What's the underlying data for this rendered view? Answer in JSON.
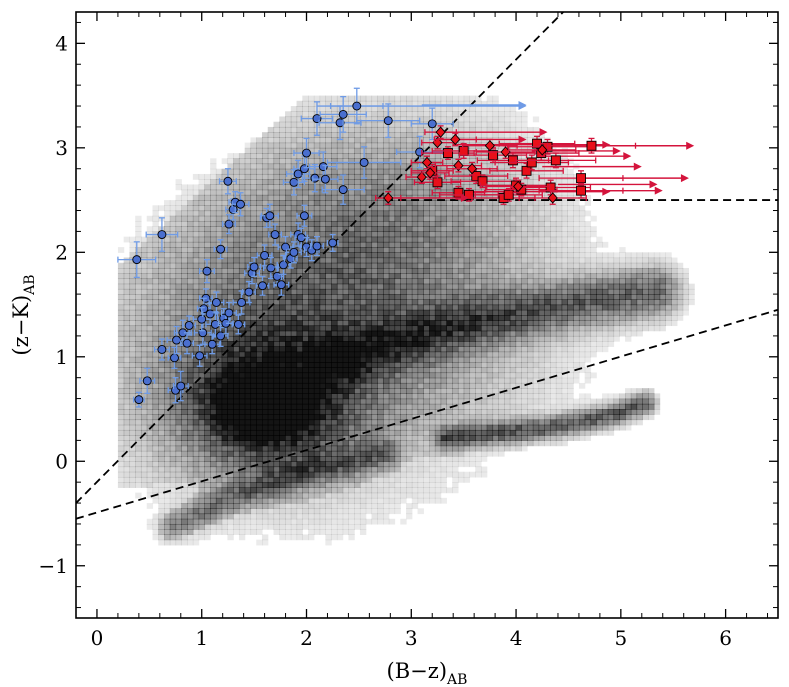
{
  "chart_data": {
    "type": "scatter",
    "title": "",
    "xlabel": "(B−z)",
    "xlabel_sub": "AB",
    "ylabel": "(z−K)",
    "ylabel_sub": "AB",
    "xlim": [
      -0.2,
      6.5
    ],
    "ylim": [
      -1.5,
      4.3
    ],
    "x_ticks": [
      0,
      1,
      2,
      3,
      4,
      5,
      6
    ],
    "x_tick_labels": [
      "0",
      "1",
      "2",
      "3",
      "4",
      "5",
      "6"
    ],
    "y_ticks": [
      -1,
      0,
      1,
      2,
      3,
      4
    ],
    "y_tick_labels": [
      "−1",
      "0",
      "1",
      "2",
      "3",
      "4"
    ],
    "colors": {
      "blue_fill": "#4a6fcf",
      "blue_err": "#6f9be6",
      "red_fill": "#e8101a",
      "red_err": "#d4143c",
      "density": "#000000"
    },
    "dividing_lines": [
      {
        "name": "diagonal-cut",
        "points": [
          [
            -0.2,
            -0.4
          ],
          [
            4.45,
            4.3
          ]
        ]
      },
      {
        "name": "horizontal-cut",
        "points": [
          [
            2.75,
            2.5
          ],
          [
            6.5,
            2.5
          ]
        ]
      },
      {
        "name": "lower-cut",
        "points": [
          [
            -0.2,
            -0.55
          ],
          [
            6.5,
            1.45
          ]
        ]
      }
    ],
    "density_components": [
      {
        "name": "main-blob",
        "cx": 1.6,
        "cy": 0.55,
        "sx": 0.55,
        "sy": 0.45,
        "w": 1.0
      },
      {
        "name": "core",
        "cx": 1.55,
        "cy": 0.5,
        "sx": 0.3,
        "sy": 0.22,
        "w": 0.9
      },
      {
        "name": "upper-halo",
        "cx": 2.3,
        "cy": 1.5,
        "sx": 1.1,
        "sy": 0.8,
        "w": 0.45
      },
      {
        "name": "top-halo",
        "cx": 2.8,
        "cy": 2.5,
        "sx": 0.9,
        "sy": 0.6,
        "w": 0.25
      },
      {
        "name": "wide-halo",
        "cx": 1.8,
        "cy": 1.0,
        "sx": 1.3,
        "sy": 1.1,
        "w": 0.3
      }
    ],
    "density_streams": [
      {
        "name": "upper-stream",
        "points": [
          [
            2.2,
            0.95
          ],
          [
            3.5,
            1.3
          ],
          [
            4.6,
            1.5
          ],
          [
            5.3,
            1.6
          ]
        ],
        "width": 0.16,
        "w": 0.7
      },
      {
        "name": "lower-stream",
        "points": [
          [
            3.3,
            0.2
          ],
          [
            4.3,
            0.3
          ],
          [
            4.9,
            0.42
          ],
          [
            5.2,
            0.53
          ]
        ],
        "width": 0.07,
        "w": 0.75
      },
      {
        "name": "star-tail",
        "points": [
          [
            0.7,
            -0.65
          ],
          [
            1.3,
            -0.35
          ],
          [
            2.0,
            -0.1
          ],
          [
            2.7,
            0.05
          ]
        ],
        "width": 0.09,
        "w": 0.5
      }
    ],
    "series": [
      {
        "name": "blue-circles",
        "marker": "circle",
        "color": "#4a6fcf",
        "points": [
          {
            "x": 0.38,
            "y": 1.93,
            "ex": 0.18,
            "ey": 0.17
          },
          {
            "x": 0.62,
            "y": 2.17,
            "ex": 0.15,
            "ey": 0.16
          },
          {
            "x": 0.4,
            "y": 0.59,
            "ex": 0.05,
            "ey": 0.07
          },
          {
            "x": 0.48,
            "y": 0.77,
            "ex": 0.07,
            "ey": 0.12
          },
          {
            "x": 0.62,
            "y": 1.07,
            "ex": 0.07,
            "ey": 0.1
          },
          {
            "x": 0.74,
            "y": 0.99,
            "ex": 0.06,
            "ey": 0.1
          },
          {
            "x": 0.75,
            "y": 0.68,
            "ex": 0.07,
            "ey": 0.12
          },
          {
            "x": 0.8,
            "y": 0.72,
            "ex": 0.07,
            "ey": 0.14
          },
          {
            "x": 0.76,
            "y": 1.16,
            "ex": 0.09,
            "ey": 0.13
          },
          {
            "x": 0.82,
            "y": 1.23,
            "ex": 0.08,
            "ey": 0.12
          },
          {
            "x": 0.86,
            "y": 1.13,
            "ex": 0.06,
            "ey": 0.1
          },
          {
            "x": 0.88,
            "y": 1.3,
            "ex": 0.06,
            "ey": 0.09
          },
          {
            "x": 0.98,
            "y": 1.01,
            "ex": 0.07,
            "ey": 0.1
          },
          {
            "x": 1.01,
            "y": 1.23,
            "ex": 0.08,
            "ey": 0.11
          },
          {
            "x": 1.04,
            "y": 1.56,
            "ex": 0.06,
            "ey": 0.09
          },
          {
            "x": 1.05,
            "y": 1.82,
            "ex": 0.07,
            "ey": 0.11
          },
          {
            "x": 1.02,
            "y": 1.46,
            "ex": 0.06,
            "ey": 0.1
          },
          {
            "x": 1.0,
            "y": 1.36,
            "ex": 0.08,
            "ey": 0.11
          },
          {
            "x": 1.08,
            "y": 1.41,
            "ex": 0.07,
            "ey": 0.1
          },
          {
            "x": 1.1,
            "y": 1.12,
            "ex": 0.07,
            "ey": 0.09
          },
          {
            "x": 1.13,
            "y": 1.31,
            "ex": 0.09,
            "ey": 0.12
          },
          {
            "x": 1.14,
            "y": 1.52,
            "ex": 0.07,
            "ey": 0.1
          },
          {
            "x": 1.18,
            "y": 1.2,
            "ex": 0.07,
            "ey": 0.1
          },
          {
            "x": 1.21,
            "y": 1.37,
            "ex": 0.06,
            "ey": 0.09
          },
          {
            "x": 1.23,
            "y": 1.32,
            "ex": 0.07,
            "ey": 0.1
          },
          {
            "x": 1.26,
            "y": 1.42,
            "ex": 0.07,
            "ey": 0.1
          },
          {
            "x": 1.18,
            "y": 2.03,
            "ex": 0.06,
            "ey": 0.09
          },
          {
            "x": 1.25,
            "y": 2.68,
            "ex": 0.08,
            "ey": 0.12
          },
          {
            "x": 1.26,
            "y": 2.27,
            "ex": 0.06,
            "ey": 0.09
          },
          {
            "x": 1.3,
            "y": 2.41,
            "ex": 0.07,
            "ey": 0.1
          },
          {
            "x": 1.32,
            "y": 2.48,
            "ex": 0.06,
            "ey": 0.1
          },
          {
            "x": 1.37,
            "y": 2.46,
            "ex": 0.08,
            "ey": 0.11
          },
          {
            "x": 1.35,
            "y": 1.31,
            "ex": 0.06,
            "ey": 0.09
          },
          {
            "x": 1.38,
            "y": 1.52,
            "ex": 0.08,
            "ey": 0.11
          },
          {
            "x": 1.45,
            "y": 1.62,
            "ex": 0.06,
            "ey": 0.1
          },
          {
            "x": 1.48,
            "y": 1.8,
            "ex": 0.07,
            "ey": 0.1
          },
          {
            "x": 1.5,
            "y": 1.86,
            "ex": 0.06,
            "ey": 0.09
          },
          {
            "x": 1.58,
            "y": 1.68,
            "ex": 0.06,
            "ey": 0.09
          },
          {
            "x": 1.6,
            "y": 1.97,
            "ex": 0.07,
            "ey": 0.1
          },
          {
            "x": 1.62,
            "y": 2.33,
            "ex": 0.06,
            "ey": 0.09
          },
          {
            "x": 1.65,
            "y": 2.35,
            "ex": 0.08,
            "ey": 0.11
          },
          {
            "x": 1.66,
            "y": 1.85,
            "ex": 0.07,
            "ey": 0.1
          },
          {
            "x": 1.7,
            "y": 2.17,
            "ex": 0.06,
            "ey": 0.1
          },
          {
            "x": 1.72,
            "y": 1.77,
            "ex": 0.06,
            "ey": 0.09
          },
          {
            "x": 1.76,
            "y": 1.69,
            "ex": 0.07,
            "ey": 0.1
          },
          {
            "x": 1.78,
            "y": 1.88,
            "ex": 0.06,
            "ey": 0.09
          },
          {
            "x": 1.8,
            "y": 2.05,
            "ex": 0.07,
            "ey": 0.1
          },
          {
            "x": 1.85,
            "y": 1.94,
            "ex": 0.06,
            "ey": 0.09
          },
          {
            "x": 1.88,
            "y": 2.0,
            "ex": 0.07,
            "ey": 0.1
          },
          {
            "x": 1.92,
            "y": 2.17,
            "ex": 0.07,
            "ey": 0.11
          },
          {
            "x": 1.95,
            "y": 2.14,
            "ex": 0.06,
            "ey": 0.09
          },
          {
            "x": 1.98,
            "y": 2.35,
            "ex": 0.07,
            "ey": 0.1
          },
          {
            "x": 2.0,
            "y": 2.05,
            "ex": 0.06,
            "ey": 0.09
          },
          {
            "x": 2.05,
            "y": 2.02,
            "ex": 0.07,
            "ey": 0.1
          },
          {
            "x": 2.1,
            "y": 2.06,
            "ex": 0.06,
            "ey": 0.09
          },
          {
            "x": 2.25,
            "y": 2.09,
            "ex": 0.05,
            "ey": 0.08
          },
          {
            "x": 1.88,
            "y": 2.67,
            "ex": 0.1,
            "ey": 0.12
          },
          {
            "x": 1.92,
            "y": 2.75,
            "ex": 0.11,
            "ey": 0.13
          },
          {
            "x": 1.98,
            "y": 2.8,
            "ex": 0.1,
            "ey": 0.12
          },
          {
            "x": 2.0,
            "y": 2.95,
            "ex": 0.12,
            "ey": 0.14
          },
          {
            "x": 2.08,
            "y": 2.71,
            "ex": 0.12,
            "ey": 0.13
          },
          {
            "x": 2.16,
            "y": 2.82,
            "ex": 0.13,
            "ey": 0.14
          },
          {
            "x": 2.18,
            "y": 2.7,
            "ex": 0.12,
            "ey": 0.13
          },
          {
            "x": 2.1,
            "y": 3.28,
            "ex": 0.15,
            "ey": 0.16
          },
          {
            "x": 2.32,
            "y": 3.24,
            "ex": 0.2,
            "ey": 0.16
          },
          {
            "x": 2.35,
            "y": 3.32,
            "ex": 0.22,
            "ey": 0.17
          },
          {
            "x": 2.48,
            "y": 3.4,
            "ex": 0.25,
            "ey": 0.17
          },
          {
            "x": 2.55,
            "y": 2.86,
            "ex": 0.35,
            "ey": 0.15
          },
          {
            "x": 2.35,
            "y": 2.6,
            "ex": 0.2,
            "ey": 0.14
          },
          {
            "x": 2.78,
            "y": 3.26,
            "ex": 0.3,
            "ey": 0.16
          },
          {
            "x": 3.08,
            "y": 2.96,
            "ex": 0.22,
            "ey": 0.15
          },
          {
            "x": 3.2,
            "y": 3.23,
            "ex": 0.2,
            "ey": 0.15
          }
        ],
        "lower_limit_arrows": [
          {
            "x": 2.1,
            "y": 3.4,
            "to": 4.1
          },
          {
            "x": 3.1,
            "y": 3.41,
            "to": 4.1
          }
        ]
      },
      {
        "name": "red-squares",
        "marker": "square",
        "color": "#e8101a",
        "points": [
          {
            "x": 3.2,
            "y": 2.78,
            "ex": 0.2,
            "ey": 0.06
          },
          {
            "x": 3.25,
            "y": 2.67,
            "ex": 0.22,
            "ey": 0.06
          },
          {
            "x": 3.35,
            "y": 2.95,
            "ex": 0.25,
            "ey": 0.06
          },
          {
            "x": 3.45,
            "y": 2.57,
            "ex": 0.25,
            "ey": 0.06
          },
          {
            "x": 3.5,
            "y": 2.97,
            "ex": 0.3,
            "ey": 0.07
          },
          {
            "x": 3.55,
            "y": 2.55,
            "ex": 0.28,
            "ey": 0.06
          },
          {
            "x": 3.62,
            "y": 2.73,
            "ex": 0.3,
            "ey": 0.07
          },
          {
            "x": 3.68,
            "y": 2.68,
            "ex": 0.3,
            "ey": 0.06
          },
          {
            "x": 3.78,
            "y": 2.93,
            "ex": 0.32,
            "ey": 0.07
          },
          {
            "x": 3.88,
            "y": 2.52,
            "ex": 0.3,
            "ey": 0.06
          },
          {
            "x": 3.93,
            "y": 2.55,
            "ex": 0.32,
            "ey": 0.06
          },
          {
            "x": 3.97,
            "y": 2.88,
            "ex": 0.34,
            "ey": 0.07
          },
          {
            "x": 4.0,
            "y": 2.64,
            "ex": 0.34,
            "ey": 0.07
          },
          {
            "x": 4.05,
            "y": 2.6,
            "ex": 0.34,
            "ey": 0.06
          },
          {
            "x": 4.1,
            "y": 2.78,
            "ex": 0.35,
            "ey": 0.07
          },
          {
            "x": 4.15,
            "y": 2.86,
            "ex": 0.35,
            "ey": 0.07
          },
          {
            "x": 4.2,
            "y": 3.04,
            "ex": 0.36,
            "ey": 0.07
          },
          {
            "x": 4.24,
            "y": 2.95,
            "ex": 0.36,
            "ey": 0.07
          },
          {
            "x": 4.3,
            "y": 3.01,
            "ex": 0.38,
            "ey": 0.07
          },
          {
            "x": 4.33,
            "y": 2.62,
            "ex": 0.38,
            "ey": 0.07
          },
          {
            "x": 4.38,
            "y": 2.88,
            "ex": 0.38,
            "ey": 0.07
          },
          {
            "x": 4.62,
            "y": 2.71,
            "ex": 0.4,
            "ey": 0.07
          },
          {
            "x": 4.62,
            "y": 2.59,
            "ex": 0.4,
            "ey": 0.07
          },
          {
            "x": 4.72,
            "y": 3.02,
            "ex": 0.42,
            "ey": 0.07
          }
        ],
        "lower_limit_arrows": [
          {
            "x": 3.22,
            "y": 3.08,
            "to": 4.1
          },
          {
            "x": 3.4,
            "y": 3.03,
            "to": 4.9
          },
          {
            "x": 3.55,
            "y": 2.58,
            "to": 4.9
          },
          {
            "x": 4.15,
            "y": 2.97,
            "to": 5.0
          },
          {
            "x": 4.2,
            "y": 2.92,
            "to": 5.1
          },
          {
            "x": 4.25,
            "y": 2.82,
            "to": 5.2
          },
          {
            "x": 4.4,
            "y": 2.65,
            "to": 5.35
          },
          {
            "x": 4.7,
            "y": 3.02,
            "to": 5.7
          },
          {
            "x": 4.62,
            "y": 2.71,
            "to": 5.65
          },
          {
            "x": 4.62,
            "y": 2.59,
            "to": 5.4
          }
        ]
      },
      {
        "name": "red-diamonds",
        "marker": "diamond",
        "color": "#e8101a",
        "points": [
          {
            "x": 2.78,
            "y": 2.52,
            "ex": 0.12,
            "ey": 0.06
          },
          {
            "x": 3.1,
            "y": 2.72,
            "ex": 0.15,
            "ey": 0.06
          },
          {
            "x": 3.15,
            "y": 2.86,
            "ex": 0.15,
            "ey": 0.06
          },
          {
            "x": 3.18,
            "y": 2.76,
            "ex": 0.18,
            "ey": 0.06
          },
          {
            "x": 3.25,
            "y": 3.05,
            "ex": 0.15,
            "ey": 0.06
          },
          {
            "x": 3.28,
            "y": 3.15,
            "ex": 0.15,
            "ey": 0.06
          },
          {
            "x": 3.42,
            "y": 3.08,
            "ex": 0.2,
            "ey": 0.06
          },
          {
            "x": 3.45,
            "y": 2.83,
            "ex": 0.22,
            "ey": 0.06
          },
          {
            "x": 3.58,
            "y": 2.8,
            "ex": 0.24,
            "ey": 0.06
          },
          {
            "x": 3.75,
            "y": 3.02,
            "ex": 0.26,
            "ey": 0.06
          },
          {
            "x": 3.9,
            "y": 2.96,
            "ex": 0.28,
            "ey": 0.06
          },
          {
            "x": 4.02,
            "y": 2.63,
            "ex": 0.3,
            "ey": 0.06
          },
          {
            "x": 4.25,
            "y": 2.98,
            "ex": 0.32,
            "ey": 0.06
          },
          {
            "x": 4.35,
            "y": 2.52,
            "ex": 0.32,
            "ey": 0.06
          }
        ],
        "lower_limit_arrows": [
          {
            "x": 2.78,
            "y": 2.52,
            "to": 3.55
          },
          {
            "x": 3.28,
            "y": 3.15,
            "to": 4.3
          }
        ]
      }
    ]
  }
}
